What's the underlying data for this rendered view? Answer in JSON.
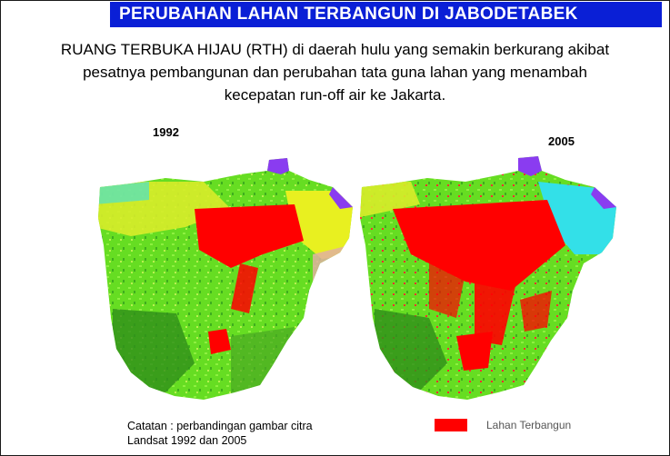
{
  "header": {
    "title": "PERUBAHAN LAHAN TERBANGUN DI JABODETABEK"
  },
  "subtitle": {
    "line1": "RUANG TERBUKA HIJAU (RTH) di daerah hulu yang semakin berkurang akibat",
    "line2": "pesatnya pembangunan dan  perubahan tata guna lahan yang menambah",
    "line3": "kecepatan run-off air ke Jakarta."
  },
  "maps": [
    {
      "year": "1992",
      "built_up_extent": "lower"
    },
    {
      "year": "2005",
      "built_up_extent": "higher"
    }
  ],
  "note": {
    "line1": "Catatan : perbandingan gambar citra",
    "line2": "Landsat 1992 dan 2005"
  },
  "legend": {
    "label": "Lahan Terbangun",
    "color": "#ff0000"
  },
  "colors": {
    "title_bg": "#0a1fd6",
    "vegetation": "#66dd22",
    "dense_vegetation": "#2f8f1a",
    "yellow_land": "#e8f020",
    "built_up": "#ff0000",
    "coast_purple": "#8a3cf0",
    "cyan_water": "#33e0e8",
    "bare_pink": "#e0b0a0"
  }
}
